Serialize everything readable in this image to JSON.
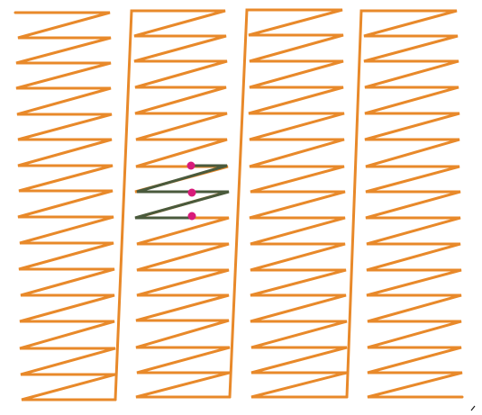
{
  "diagram": {
    "background_color": "#ffffff",
    "pattern_color": "#e8892a",
    "highlight_color": "#4a5a3c",
    "marker_color": "#d81b7a",
    "columns_count": 4,
    "highlight": {
      "column_index": 1,
      "segments": 4,
      "markers": 3
    },
    "mark_color": "#1a1a1a"
  }
}
